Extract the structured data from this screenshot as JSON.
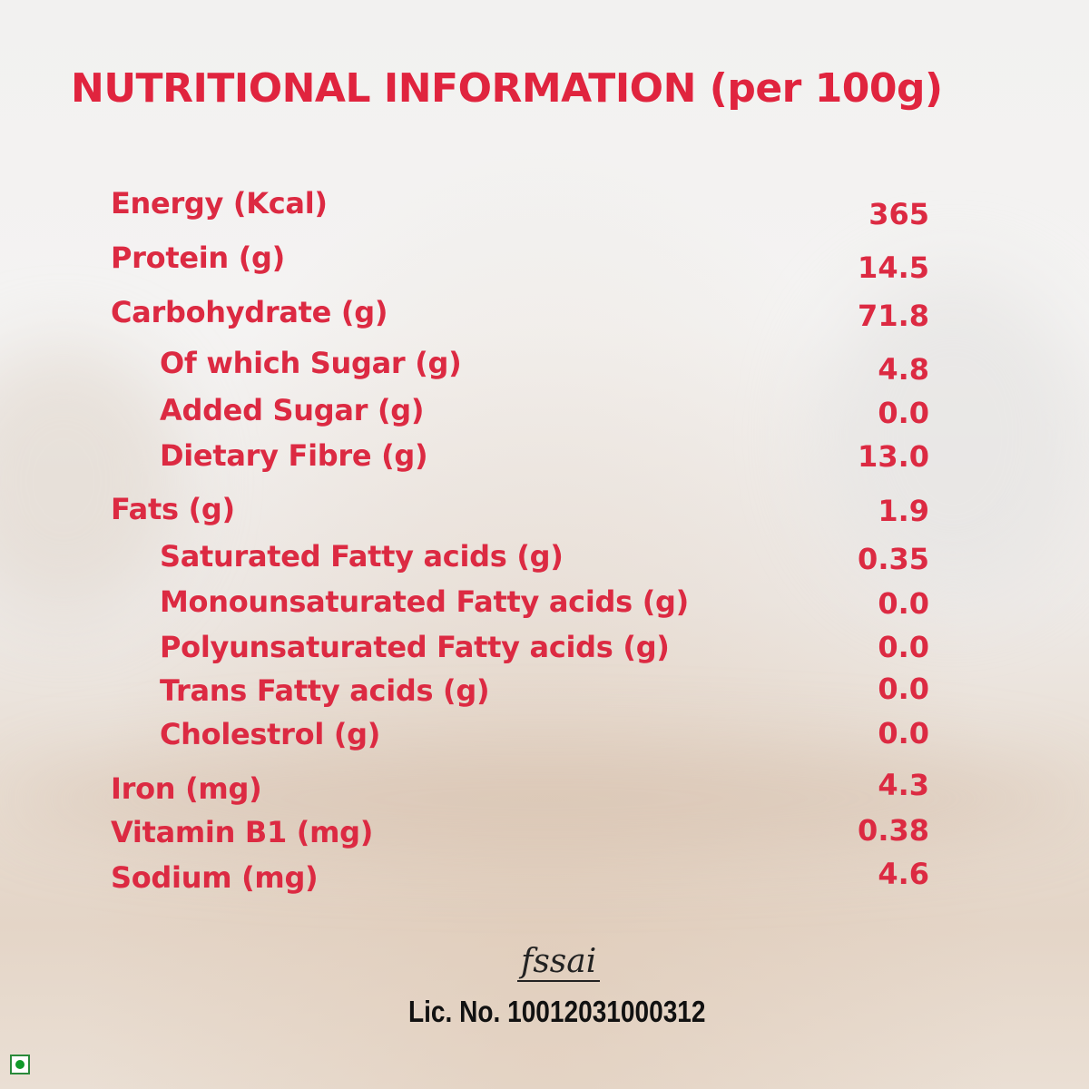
{
  "title": "NUTRITIONAL INFORMATION (per 100g)",
  "rows": [
    {
      "label": "Energy (Kcal)",
      "value": "365",
      "indent": false
    },
    {
      "label": "Protein (g)",
      "value": "14.5",
      "indent": false
    },
    {
      "label": "Carbohydrate  (g)",
      "value": "71.8",
      "indent": false
    },
    {
      "label": "Of which Sugar  (g)",
      "value": "4.8",
      "indent": true
    },
    {
      "label": "Added Sugar  (g)",
      "value": "0.0",
      "indent": true
    },
    {
      "label": "Dietary Fibre  (g)",
      "value": "13.0",
      "indent": true
    },
    {
      "label": "Fats  (g)",
      "value": "1.9",
      "indent": false
    },
    {
      "label": "Saturated Fatty acids  (g)",
      "value": "0.35",
      "indent": true
    },
    {
      "label": "Monounsaturated Fatty acids  (g)",
      "value": "0.0",
      "indent": true
    },
    {
      "label": "Polyunsaturated Fatty acids  (g)",
      "value": "0.0",
      "indent": true
    },
    {
      "label": "Trans Fatty acids  (g)",
      "value": "0.0",
      "indent": true
    },
    {
      "label": "Cholestrol  (g)",
      "value": "0.0",
      "indent": true
    },
    {
      "label": "Iron  (mg)",
      "value": "4.3",
      "indent": false
    },
    {
      "label": "Vitamin B1  (mg)",
      "value": "0.38",
      "indent": false
    },
    {
      "label": "Sodium (mg)",
      "value": "4.6",
      "indent": false
    }
  ],
  "fssai_logo": "fssai",
  "license": "Lic. No. 10012031000312",
  "veg_mark": "vegetarian-icon",
  "colors": {
    "accent": "#e0243e",
    "veg": "#119a2a"
  }
}
